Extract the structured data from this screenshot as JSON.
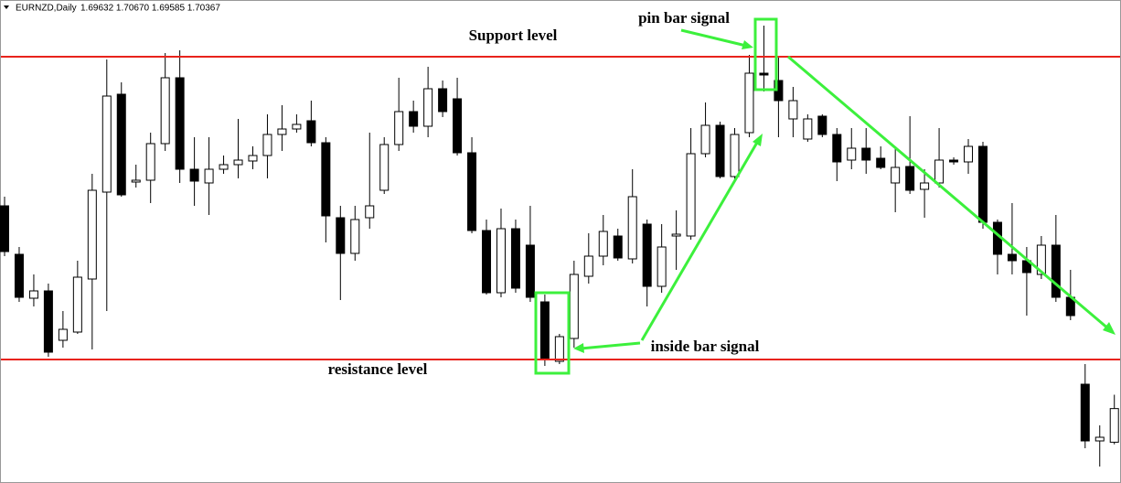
{
  "chart_data": {
    "type": "candlestick",
    "header": {
      "symbol": "EURNZD,Daily",
      "ohlc": "1.69632 1.70670 1.69585 1.70367"
    },
    "open": [
      1.748,
      1.7374,
      1.7278,
      1.7294,
      1.7186,
      1.7204,
      1.732,
      1.751,
      1.7724,
      1.7532,
      1.7536,
      1.7616,
      1.776,
      1.756,
      1.753,
      1.756,
      1.757,
      1.7578,
      1.759,
      1.7636,
      1.7648,
      1.7666,
      1.7618,
      1.7454,
      1.7376,
      1.7454,
      1.7514,
      1.7614,
      1.7686,
      1.7654,
      1.7736,
      1.7714,
      1.7596,
      1.7426,
      1.729,
      1.743,
      1.7394,
      1.727,
      1.714,
      1.719,
      1.7326,
      1.737,
      1.7414,
      1.7364,
      1.744,
      1.7304,
      1.7414,
      1.7414,
      1.7594,
      1.7656,
      1.7544,
      1.764,
      1.777,
      1.7754,
      1.767,
      1.7626,
      1.7676,
      1.7636,
      1.758,
      1.7606,
      1.7584,
      1.753,
      1.7566,
      1.7516,
      1.753,
      1.758,
      1.7576,
      1.761,
      1.7444,
      1.7374,
      1.736,
      1.733,
      1.7394,
      1.728,
      1.709,
      1.6966,
      1.69632
    ],
    "high": [
      1.75,
      1.739,
      1.733,
      1.731,
      1.725,
      1.736,
      1.755,
      1.78,
      1.775,
      1.757,
      1.764,
      1.7814,
      1.782,
      1.763,
      1.763,
      1.759,
      1.767,
      1.761,
      1.768,
      1.77,
      1.768,
      1.771,
      1.763,
      1.748,
      1.748,
      1.764,
      1.763,
      1.776,
      1.771,
      1.7784,
      1.7754,
      1.776,
      1.763,
      1.745,
      1.7474,
      1.745,
      1.748,
      1.7286,
      1.72,
      1.736,
      1.742,
      1.746,
      1.743,
      1.756,
      1.745,
      1.744,
      1.747,
      1.765,
      1.7706,
      1.7664,
      1.765,
      1.781,
      1.7874,
      1.7806,
      1.774,
      1.768,
      1.768,
      1.765,
      1.765,
      1.765,
      1.761,
      1.761,
      1.7676,
      1.756,
      1.765,
      1.7586,
      1.7626,
      1.762,
      1.745,
      1.7486,
      1.739,
      1.7414,
      1.746,
      1.734,
      1.7134,
      1.7,
      1.7067
    ],
    "low": [
      1.737,
      1.727,
      1.726,
      1.715,
      1.717,
      1.72,
      1.7166,
      1.725,
      1.75,
      1.752,
      1.7486,
      1.76,
      1.753,
      1.748,
      1.746,
      1.755,
      1.754,
      1.756,
      1.754,
      1.76,
      1.764,
      1.761,
      1.74,
      1.7274,
      1.736,
      1.743,
      1.7506,
      1.76,
      1.764,
      1.763,
      1.7674,
      1.759,
      1.742,
      1.7286,
      1.728,
      1.729,
      1.727,
      1.713,
      1.7134,
      1.717,
      1.731,
      1.735,
      1.736,
      1.7354,
      1.726,
      1.729,
      1.734,
      1.7406,
      1.7586,
      1.754,
      1.753,
      1.763,
      1.773,
      1.763,
      1.763,
      1.762,
      1.763,
      1.7534,
      1.756,
      1.755,
      1.756,
      1.7466,
      1.7506,
      1.7454,
      1.752,
      1.757,
      1.755,
      1.743,
      1.733,
      1.733,
      1.724,
      1.732,
      1.727,
      1.723,
      1.695,
      1.691,
      1.69585
    ],
    "close": [
      1.738,
      1.728,
      1.7294,
      1.716,
      1.721,
      1.7324,
      1.7514,
      1.772,
      1.7504,
      1.7536,
      1.7616,
      1.776,
      1.756,
      1.7534,
      1.756,
      1.757,
      1.758,
      1.759,
      1.7636,
      1.7648,
      1.7658,
      1.7618,
      1.7458,
      1.7376,
      1.745,
      1.748,
      1.7614,
      1.7686,
      1.7654,
      1.7736,
      1.7686,
      1.7596,
      1.7426,
      1.729,
      1.743,
      1.73,
      1.728,
      1.7144,
      1.7194,
      1.733,
      1.737,
      1.7424,
      1.7366,
      1.75,
      1.7304,
      1.739,
      1.7418,
      1.7594,
      1.7656,
      1.7544,
      1.7636,
      1.777,
      1.7766,
      1.771,
      1.771,
      1.767,
      1.7636,
      1.7576,
      1.7606,
      1.758,
      1.7564,
      1.7564,
      1.7514,
      1.753,
      1.758,
      1.7576,
      1.761,
      1.7444,
      1.7374,
      1.736,
      1.7334,
      1.7394,
      1.728,
      1.724,
      1.6966,
      1.6974,
      1.70367
    ],
    "ylim": [
      1.6874,
      1.793
    ],
    "up_color": "#ffffff",
    "down_color": "#000000",
    "levels": [
      {
        "label": "Support level",
        "value": 1.7806,
        "color": "#e8231c"
      },
      {
        "label": "resistance level",
        "value": 1.7144,
        "color": "#e8231c"
      }
    ],
    "annotations": [
      {
        "text": "pin bar signal"
      },
      {
        "text": "inside bar signal"
      }
    ],
    "annotation_color": "#3cf03c"
  }
}
